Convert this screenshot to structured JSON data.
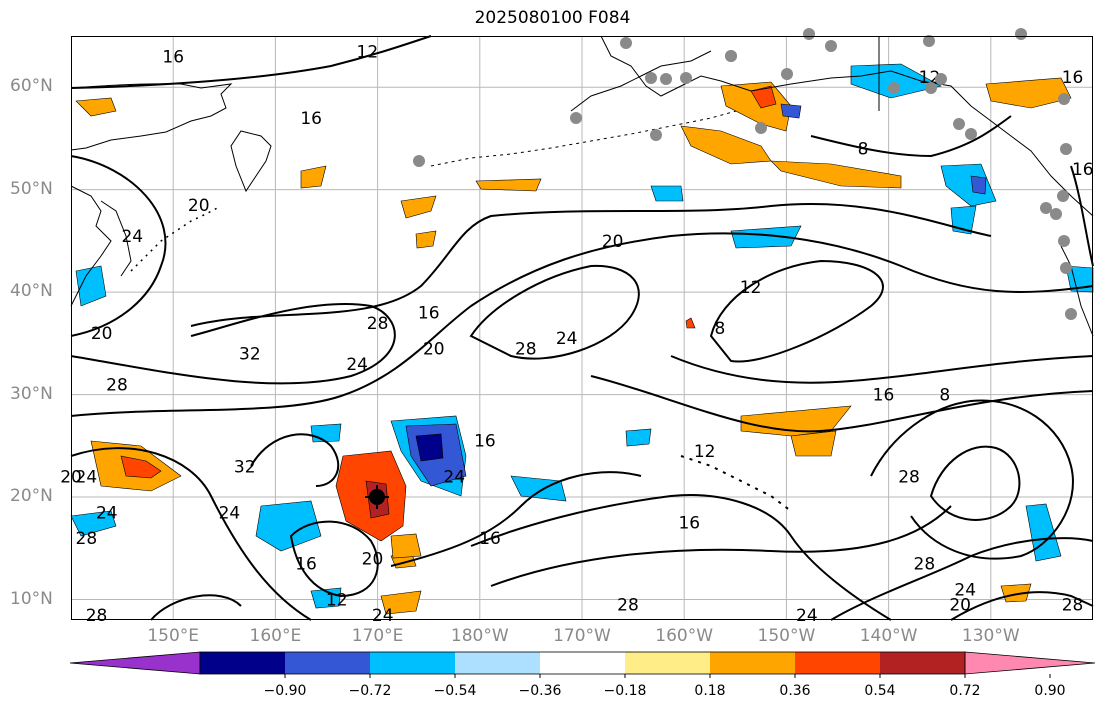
{
  "title": "2025080100 F084",
  "lat_labels": [
    {
      "label": "60°N",
      "lat": 60
    },
    {
      "label": "50°N",
      "lat": 50
    },
    {
      "label": "40°N",
      "lat": 40
    },
    {
      "label": "30°N",
      "lat": 30
    },
    {
      "label": "20°N",
      "lat": 20
    },
    {
      "label": "10°N",
      "lat": 10
    }
  ],
  "lon_labels": [
    {
      "label": "150°E",
      "lon": 150
    },
    {
      "label": "160°E",
      "lon": 160
    },
    {
      "label": "170°E",
      "lon": 170
    },
    {
      "label": "180°W",
      "lon": 180
    },
    {
      "label": "170°W",
      "lon": 190
    },
    {
      "label": "160°W",
      "lon": 200
    },
    {
      "label": "150°W",
      "lon": 210
    },
    {
      "label": "140°W",
      "lon": 220
    },
    {
      "label": "130°W",
      "lon": 230
    }
  ],
  "map_extent": {
    "lon_min": 140,
    "lon_max": 240,
    "lat_min": 8,
    "lat_max": 65
  },
  "colorbar": {
    "colors": [
      "#9932CC",
      "#00008B",
      "#3458D5",
      "#00BFFF",
      "#ADDFFF",
      "#FFFFFF",
      "#FFEE88",
      "#FFA500",
      "#FF4500",
      "#B22222",
      "#FF88B0"
    ],
    "tick_labels": [
      "−0.90",
      "−0.72",
      "−0.54",
      "−0.36",
      "−0.18",
      "0.18",
      "0.36",
      "0.54",
      "0.72",
      "0.90"
    ]
  },
  "contour_labels": [
    {
      "text": "16",
      "lon": 150,
      "lat": 63
    },
    {
      "text": "12",
      "lon": 169,
      "lat": 63.5
    },
    {
      "text": "16",
      "lon": 163.5,
      "lat": 57
    },
    {
      "text": "24",
      "lon": 146,
      "lat": 45.5
    },
    {
      "text": "20",
      "lon": 152.5,
      "lat": 48.5
    },
    {
      "text": "20",
      "lon": 143,
      "lat": 36
    },
    {
      "text": "28",
      "lon": 144.5,
      "lat": 31
    },
    {
      "text": "32",
      "lon": 157.5,
      "lat": 34
    },
    {
      "text": "28",
      "lon": 170,
      "lat": 37
    },
    {
      "text": "24",
      "lon": 168,
      "lat": 33
    },
    {
      "text": "16",
      "lon": 175,
      "lat": 38
    },
    {
      "text": "20",
      "lon": 175.5,
      "lat": 34.5
    },
    {
      "text": "20",
      "lon": 193,
      "lat": 45
    },
    {
      "text": "28",
      "lon": 184.5,
      "lat": 34.5
    },
    {
      "text": "24",
      "lon": 188.5,
      "lat": 35.5
    },
    {
      "text": "12",
      "lon": 206.5,
      "lat": 40.5
    },
    {
      "text": "8",
      "lon": 203.5,
      "lat": 36.5
    },
    {
      "text": "16",
      "lon": 219.5,
      "lat": 30
    },
    {
      "text": "8",
      "lon": 225.5,
      "lat": 30
    },
    {
      "text": "12",
      "lon": 202,
      "lat": 24.5
    },
    {
      "text": "32",
      "lon": 157,
      "lat": 23
    },
    {
      "text": "24",
      "lon": 141.5,
      "lat": 22
    },
    {
      "text": "20",
      "lon": 140,
      "lat": 22
    },
    {
      "text": "24",
      "lon": 143.5,
      "lat": 18.5
    },
    {
      "text": "28",
      "lon": 141.5,
      "lat": 16
    },
    {
      "text": "24",
      "lon": 155.5,
      "lat": 18.5
    },
    {
      "text": "16",
      "lon": 163,
      "lat": 13.5
    },
    {
      "text": "20",
      "lon": 169.5,
      "lat": 14
    },
    {
      "text": "12",
      "lon": 166,
      "lat": 10
    },
    {
      "text": "24",
      "lon": 170.5,
      "lat": 8.5
    },
    {
      "text": "28",
      "lon": 142.5,
      "lat": 8.5
    },
    {
      "text": "16",
      "lon": 180.5,
      "lat": 25.5
    },
    {
      "text": "24",
      "lon": 177.5,
      "lat": 22
    },
    {
      "text": "16",
      "lon": 181,
      "lat": 16
    },
    {
      "text": "16",
      "lon": 200.5,
      "lat": 17.5
    },
    {
      "text": "28",
      "lon": 194.5,
      "lat": 9.5
    },
    {
      "text": "28",
      "lon": 222,
      "lat": 22
    },
    {
      "text": "28",
      "lon": 223.5,
      "lat": 13.5
    },
    {
      "text": "24",
      "lon": 227.5,
      "lat": 11
    },
    {
      "text": "24",
      "lon": 212,
      "lat": 8.5
    },
    {
      "text": "20",
      "lon": 227,
      "lat": 9.5
    },
    {
      "text": "28",
      "lon": 238,
      "lat": 9.5
    },
    {
      "text": "16",
      "lon": 238,
      "lat": 61
    },
    {
      "text": "16",
      "lon": 239,
      "lat": 52
    },
    {
      "text": "8",
      "lon": 217.5,
      "lat": 54
    },
    {
      "text": "12",
      "lon": 224,
      "lat": 61
    }
  ]
}
